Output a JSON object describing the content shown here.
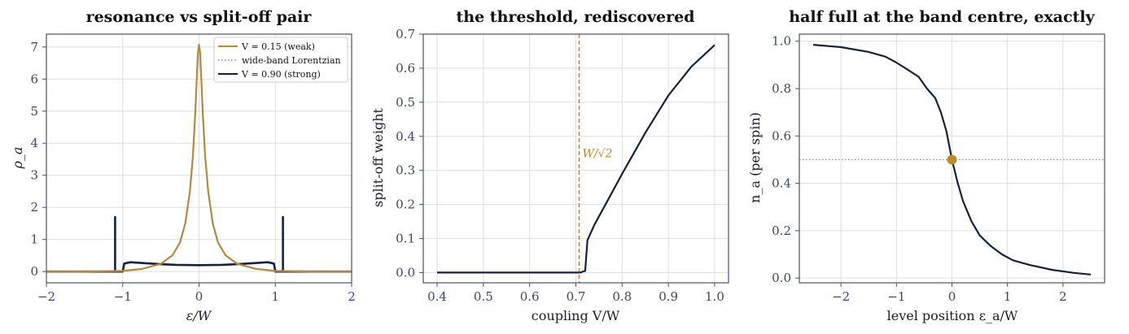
{
  "colors": {
    "navy": "#17213d",
    "gold": "#bf8a2a",
    "gray": "#8a8a8a"
  },
  "chart_data": [
    {
      "type": "line",
      "title": "resonance vs split-off pair",
      "xlabel": "ε/W",
      "ylabel": "ρ_a",
      "xlim": [
        -2,
        2
      ],
      "ylim": [
        -0.35,
        7.4
      ],
      "xticks": [
        "−2",
        "−1",
        "0",
        "1",
        "2"
      ],
      "yticks": [
        "0",
        "1",
        "2",
        "3",
        "4",
        "5",
        "6",
        "7"
      ],
      "grid": true,
      "legend_position": "top-right",
      "series": [
        {
          "name": "V = 0.15 (weak)",
          "style": "solid",
          "color": "#bf8a2a",
          "x": [
            -2,
            -1.5,
            -1.0,
            -0.75,
            -0.5,
            -0.35,
            -0.25,
            -0.18,
            -0.12,
            -0.08,
            -0.05,
            -0.03,
            -0.015,
            0,
            0.015,
            0.03,
            0.05,
            0.08,
            0.12,
            0.18,
            0.25,
            0.35,
            0.5,
            0.75,
            1.0,
            1.5,
            2
          ],
          "y": [
            0,
            0,
            0.02,
            0.08,
            0.24,
            0.5,
            0.9,
            1.5,
            2.5,
            3.6,
            4.9,
            6.0,
            6.8,
            7.07,
            6.8,
            6.0,
            4.9,
            3.6,
            2.5,
            1.5,
            0.9,
            0.5,
            0.24,
            0.08,
            0.02,
            0,
            0
          ]
        },
        {
          "name": "wide-band Lorentzian",
          "style": "dotted",
          "color": "#8a8a8a",
          "x": [
            -2,
            -1.5,
            -1.0,
            -0.75,
            -0.5,
            -0.35,
            -0.25,
            -0.18,
            -0.12,
            -0.08,
            -0.05,
            -0.03,
            -0.015,
            0,
            0.015,
            0.03,
            0.05,
            0.08,
            0.12,
            0.18,
            0.25,
            0.35,
            0.5,
            0.75,
            1.0,
            1.5,
            2
          ],
          "y": [
            0.01,
            0.02,
            0.03,
            0.09,
            0.25,
            0.51,
            0.92,
            1.52,
            2.52,
            3.62,
            4.92,
            6.02,
            6.82,
            7.07,
            6.82,
            6.02,
            4.92,
            3.62,
            2.52,
            1.52,
            0.92,
            0.51,
            0.25,
            0.09,
            0.03,
            0.02,
            0.01
          ]
        },
        {
          "name": "V = 0.90 (strong)",
          "style": "solid",
          "color": "#17213d",
          "x": [
            -2,
            -1.1,
            -1.1,
            -1.1,
            -1.1,
            -1.0,
            -0.98,
            -0.9,
            -0.7,
            -0.5,
            -0.3,
            0,
            0.3,
            0.5,
            0.7,
            0.9,
            0.98,
            1.0,
            1.1,
            1.1,
            1.1,
            1.1,
            2
          ],
          "y": [
            0,
            0,
            1.7,
            1.7,
            0,
            0,
            0.25,
            0.29,
            0.26,
            0.23,
            0.21,
            0.2,
            0.21,
            0.23,
            0.26,
            0.29,
            0.25,
            0,
            0,
            1.7,
            1.7,
            0,
            0
          ]
        }
      ]
    },
    {
      "type": "line",
      "title": "the threshold, rediscovered",
      "xlabel": "coupling  V/W",
      "ylabel": "split-off weight",
      "xlim": [
        0.37,
        1.03
      ],
      "ylim": [
        -0.03,
        0.7
      ],
      "xticks": [
        "0.4",
        "0.5",
        "0.6",
        "0.7",
        "0.8",
        "0.9",
        "1.0"
      ],
      "yticks": [
        "0.0",
        "0.1",
        "0.2",
        "0.3",
        "0.4",
        "0.5",
        "0.6",
        "0.7"
      ],
      "grid": true,
      "annotations": [
        {
          "text": "W/√2",
          "x": 0.7071,
          "type": "vertical-dashed-line",
          "color": "#bf8a2a"
        }
      ],
      "series": [
        {
          "name": "",
          "color": "#17213d",
          "x": [
            0.4,
            0.5,
            0.6,
            0.7,
            0.71,
            0.715,
            0.72,
            0.725,
            0.74,
            0.77,
            0.8,
            0.85,
            0.9,
            0.95,
            1.0
          ],
          "y": [
            0,
            0,
            0,
            0,
            0,
            0.003,
            0.005,
            0.095,
            0.14,
            0.215,
            0.29,
            0.41,
            0.52,
            0.605,
            0.668
          ]
        }
      ]
    },
    {
      "type": "line",
      "title": "half full at the band centre, exactly",
      "xlabel": "level position  ε_a/W",
      "ylabel": "n_a (per spin)",
      "xlim": [
        -2.75,
        2.75
      ],
      "ylim": [
        -0.02,
        1.03
      ],
      "xticks": [
        "−2",
        "−1",
        "0",
        "1",
        "2"
      ],
      "yticks": [
        "0.0",
        "0.2",
        "0.4",
        "0.6",
        "0.8",
        "1.0"
      ],
      "grid": true,
      "reference_line": {
        "y": 0.5,
        "style": "dotted"
      },
      "marker": {
        "x": 0,
        "y": 0.5,
        "color": "#bf8a2a"
      },
      "series": [
        {
          "name": "",
          "color": "#17213d",
          "x": [
            -2.5,
            -2.0,
            -1.5,
            -1.2,
            -1.0,
            -0.8,
            -0.6,
            -0.45,
            -0.3,
            -0.2,
            -0.1,
            0,
            0.1,
            0.2,
            0.35,
            0.5,
            0.7,
            0.9,
            1.1,
            1.4,
            1.8,
            2.2,
            2.5
          ],
          "y": [
            0.985,
            0.975,
            0.955,
            0.935,
            0.91,
            0.88,
            0.85,
            0.8,
            0.76,
            0.7,
            0.62,
            0.5,
            0.405,
            0.325,
            0.24,
            0.18,
            0.135,
            0.1,
            0.075,
            0.055,
            0.035,
            0.022,
            0.015
          ]
        }
      ]
    }
  ]
}
